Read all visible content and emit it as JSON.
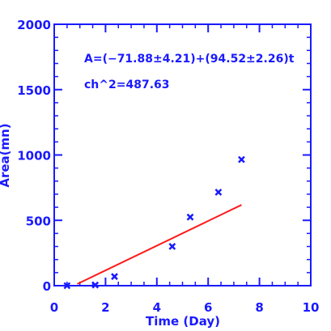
{
  "chart_data": {
    "type": "scatter",
    "xlabel": "Time (Day)",
    "ylabel": "Area(mn)",
    "xlim": [
      0,
      10
    ],
    "ylim": [
      0,
      2000
    ],
    "x_ticks": [
      "0",
      "2",
      "4",
      "6",
      "8",
      "10"
    ],
    "y_ticks": [
      "0",
      "500",
      "1000",
      "1500",
      "2000"
    ],
    "grid": false,
    "annotations": [
      "A=(−71.88±4.21)+(94.52±2.26)t",
      "ch^2=487.63"
    ],
    "series": [
      {
        "marker": "x",
        "color": "#1a1aff",
        "points": [
          {
            "x": 0.5,
            "y": 0
          },
          {
            "x": 1.6,
            "y": 5
          },
          {
            "x": 2.35,
            "y": 70
          },
          {
            "x": 4.6,
            "y": 300
          },
          {
            "x": 5.3,
            "y": 525
          },
          {
            "x": 6.4,
            "y": 715
          },
          {
            "x": 7.3,
            "y": 965
          }
        ]
      },
      {
        "line": "fit",
        "color": "#ff1a1a",
        "intercept": -71.88,
        "slope": 94.52,
        "x_range": [
          0.9,
          7.3
        ]
      }
    ],
    "colors": {
      "axes": "#1a1aff",
      "points": "#1a1aff",
      "fit": "#ff1a1a"
    }
  }
}
